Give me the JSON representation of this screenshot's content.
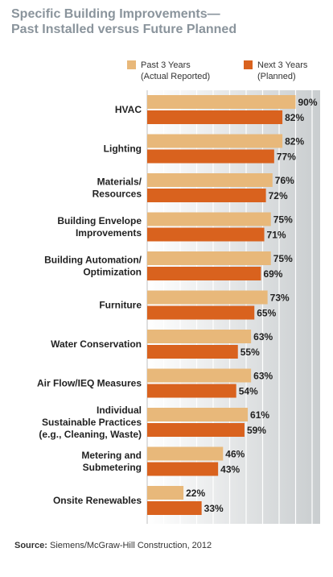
{
  "title": {
    "line1": "Specific Building Improvements—",
    "line2": "Past Installed versus Future Planned"
  },
  "legend": [
    {
      "name": "Past 3 Years",
      "sub": "(Actual Reported)",
      "color": "#e8b87a"
    },
    {
      "name": "Next 3 Years",
      "sub": "(Planned)",
      "color": "#d9621e"
    }
  ],
  "source": {
    "prefix": "Source:",
    "text": "Siemens/McGraw-Hill Construction, 2012"
  },
  "chart_data": {
    "type": "bar",
    "orientation": "horizontal",
    "categories": [
      [
        "HVAC"
      ],
      [
        "Lighting"
      ],
      [
        "Materials/",
        "Resources"
      ],
      [
        "Building Envelope",
        "Improvements"
      ],
      [
        "Building Automation/",
        "Optimization"
      ],
      [
        "Furniture"
      ],
      [
        "Water Conservation"
      ],
      [
        "Air Flow/IEQ Measures"
      ],
      [
        "Individual",
        "Sustainable Practices",
        "(e.g., Cleaning, Waste)"
      ],
      [
        "Metering and",
        "Submetering"
      ],
      [
        "Onsite Renewables"
      ]
    ],
    "series": [
      {
        "name": "Past 3 Years (Actual Reported)",
        "color": "#e8b87a",
        "values": [
          90,
          82,
          76,
          75,
          75,
          73,
          63,
          63,
          61,
          46,
          22
        ]
      },
      {
        "name": "Next 3 Years (Planned)",
        "color": "#d9621e",
        "values": [
          82,
          77,
          72,
          71,
          69,
          65,
          55,
          54,
          59,
          43,
          33
        ]
      }
    ],
    "value_suffix": "%",
    "xlim": [
      0,
      100
    ],
    "grid": true,
    "legend_position": "top"
  }
}
